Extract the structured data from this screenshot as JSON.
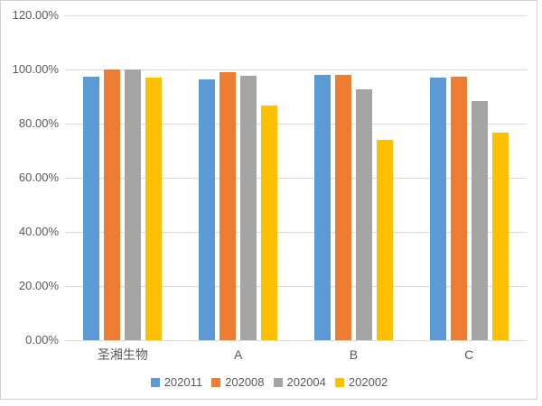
{
  "chart_data": {
    "type": "bar",
    "categories": [
      "圣湘生物",
      "A",
      "B",
      "C"
    ],
    "series": [
      {
        "name": "202011",
        "color": "#5B9BD5",
        "values": [
          97.3,
          96.3,
          98.1,
          97.0
        ]
      },
      {
        "name": "202008",
        "color": "#ED7D31",
        "values": [
          100.0,
          99.1,
          98.1,
          97.2
        ]
      },
      {
        "name": "202004",
        "color": "#A5A5A5",
        "values": [
          100.0,
          97.5,
          92.8,
          88.3
        ]
      },
      {
        "name": "202002",
        "color": "#FFC000",
        "values": [
          96.9,
          86.7,
          74.0,
          76.8
        ]
      }
    ],
    "title": "",
    "xlabel": "",
    "ylabel": "",
    "ylim": [
      0,
      120
    ],
    "ytick_step": 20,
    "ytick_labels": [
      "0.00%",
      "20.00%",
      "40.00%",
      "60.00%",
      "80.00%",
      "100.00%",
      "120.00%"
    ],
    "grid": true,
    "legend_position": "bottom"
  },
  "style": {
    "gridline_color": "#d9d9d9",
    "frame_color": "#d2d2d2",
    "text_color": "#595959",
    "background": "#ffffff"
  }
}
